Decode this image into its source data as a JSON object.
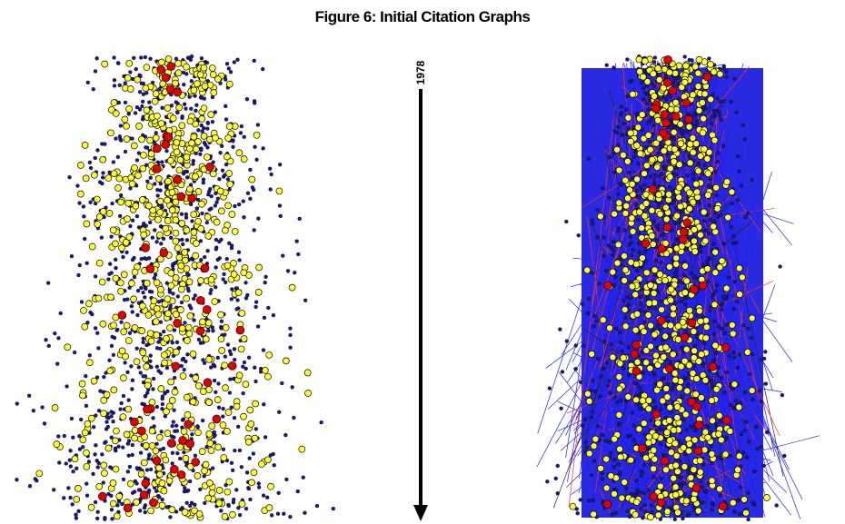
{
  "figure": {
    "title": "Figure 6: Initial Citation Graphs",
    "time_label": "1978"
  }
}
